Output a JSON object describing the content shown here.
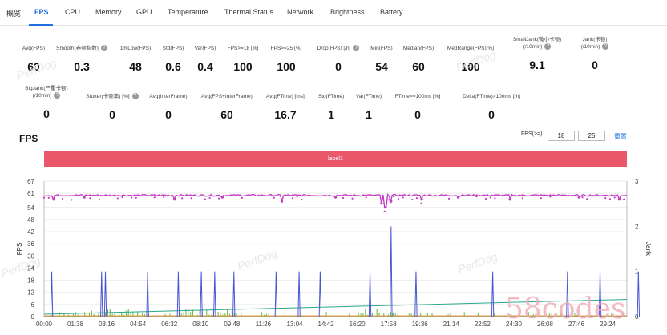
{
  "tabs": [
    {
      "label": "概览",
      "active": false
    },
    {
      "label": "FPS",
      "active": true
    },
    {
      "label": "CPU",
      "active": false
    },
    {
      "label": "Memory",
      "active": false
    },
    {
      "label": "GPU",
      "active": false
    },
    {
      "label": "Temperature",
      "active": false
    },
    {
      "label": "Thermal Status",
      "active": false
    },
    {
      "label": "Network",
      "active": false
    },
    {
      "label": "Brightness",
      "active": false
    },
    {
      "label": "Battery",
      "active": false
    }
  ],
  "metrics_row1": [
    {
      "label": "Avg(FPS)",
      "value": "60"
    },
    {
      "label": "Smooth(卷顿指数)",
      "value": "0.3"
    },
    {
      "label": "1%Low(FPS)",
      "value": "48"
    },
    {
      "label": "Std(FPS)",
      "value": "0.6"
    },
    {
      "label": "Var(FPS)",
      "value": "0.4"
    },
    {
      "label": "FPS>=18 [%]",
      "value": "100"
    },
    {
      "label": "FPS>=25 [%]",
      "value": "100"
    },
    {
      "label": "Drop(FPS) [/h]",
      "value": "0"
    },
    {
      "label": "Min(FPS)",
      "value": "54"
    },
    {
      "label": "Median(FPS)",
      "value": "60"
    },
    {
      "label": "MedRange(FPS)[%]",
      "value": "100"
    },
    {
      "label": "SmallJank(微小卡顿)",
      "label2": "(/10min)",
      "value": "9.1"
    },
    {
      "label": "Jank(卡顿)",
      "label2": "(/10min)",
      "value": "0"
    }
  ],
  "metrics_row2": [
    {
      "label": "BigJank(严重卡顿)",
      "label2": "(/10min)",
      "value": "0"
    },
    {
      "label": "Stutter(卡顿率) [%]",
      "value": "0"
    },
    {
      "label": "Avg(InterFrame)",
      "value": "0"
    },
    {
      "label": "Avg(FPS+InterFrame)",
      "value": "60"
    },
    {
      "label": "Avg(FTime) [ms]",
      "value": "16.7"
    },
    {
      "label": "Std(FTime)",
      "value": "1"
    },
    {
      "label": "Var(FTime)",
      "value": "1"
    },
    {
      "label": "FTime>=100ms [%]",
      "value": "0"
    },
    {
      "label": "Delta(FTime)>100ms [/h]",
      "value": "0"
    }
  ],
  "watermark": "PerfDog",
  "chart_header": {
    "title": "FPS",
    "fps_label": "FPS(>=)",
    "threshold1": "18",
    "threshold2": "25",
    "reset_label": "重置",
    "label_bar": "label1"
  },
  "decorative_logo": "58codes",
  "colors": {
    "accent": "#1f6fe0",
    "fps": "#c43cc4",
    "jank": "#4a57d4",
    "trend": "#2aa88c",
    "small_jank": "#5cb83c",
    "label_bar": "#e8576a"
  },
  "chart_data": {
    "type": "line",
    "xlabel": "",
    "ylabel": "FPS",
    "y2label": "Jank",
    "x_ticks": [
      "00:00",
      "01:38",
      "03:16",
      "04:54",
      "06:32",
      "08:10",
      "09:48",
      "11:26",
      "13:04",
      "14:42",
      "16:20",
      "17:58",
      "19:36",
      "21:14",
      "22:52",
      "24:30",
      "26:08",
      "27:46",
      "29:24"
    ],
    "y_ticks": [
      0,
      6,
      12,
      18,
      24,
      30,
      36,
      42,
      48,
      54,
      61,
      67
    ],
    "y2_ticks": [
      0,
      1,
      2,
      3
    ],
    "ylim": [
      0,
      67
    ],
    "y2lim": [
      0,
      3
    ],
    "series": [
      {
        "name": "FPS",
        "baseline": 60,
        "dips": [
          [
            0.5,
            58
          ],
          [
            2.1,
            59
          ],
          [
            6.8,
            58
          ],
          [
            9.3,
            59
          ],
          [
            12.4,
            57
          ],
          [
            15.2,
            59
          ],
          [
            17.6,
            56
          ],
          [
            17.8,
            54
          ],
          [
            18.1,
            57
          ],
          [
            19.7,
            58
          ],
          [
            21.6,
            59
          ],
          [
            24.3,
            58
          ],
          [
            27.9,
            59
          ],
          [
            30.0,
            58
          ]
        ]
      },
      {
        "name": "Jank",
        "spikes": [
          [
            0.4,
            1
          ],
          [
            3.0,
            1
          ],
          [
            3.2,
            1
          ],
          [
            5.4,
            1
          ],
          [
            7.0,
            1
          ],
          [
            8.2,
            1
          ],
          [
            8.9,
            1
          ],
          [
            9.9,
            1
          ],
          [
            12.1,
            1
          ],
          [
            13.3,
            1
          ],
          [
            14.4,
            1
          ],
          [
            17.0,
            1
          ],
          [
            18.1,
            2
          ],
          [
            19.4,
            1
          ],
          [
            23.4,
            1
          ],
          [
            27.3,
            1
          ],
          [
            29.0,
            1
          ],
          [
            31.0,
            1
          ]
        ]
      },
      {
        "name": "Trend",
        "start": 1.2,
        "end": 8.5
      }
    ],
    "grid": true
  }
}
